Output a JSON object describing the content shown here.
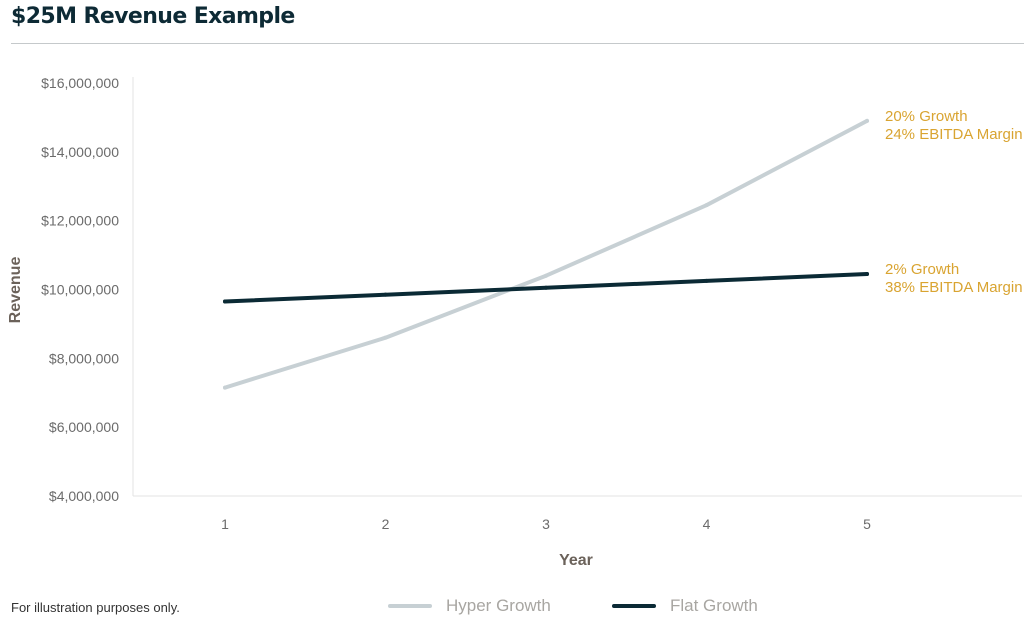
{
  "title": "$25M Revenue Example",
  "footnote": "For illustration purposes only.",
  "colors": {
    "hyper": "#c7d0d4",
    "flat": "#0b2a35",
    "annotation": "#d9a431"
  },
  "chart_data": {
    "type": "line",
    "xlabel": "Year",
    "ylabel": "Revenue",
    "x": [
      1,
      2,
      3,
      4,
      5
    ],
    "ylim": [
      4000000,
      16000000
    ],
    "yticks": [
      4000000,
      6000000,
      8000000,
      10000000,
      12000000,
      14000000,
      16000000
    ],
    "ytick_labels": [
      "$4,000,000",
      "$6,000,000",
      "$8,000,000",
      "$10,000,000",
      "$12,000,000",
      "$14,000,000",
      "$16,000,000"
    ],
    "grid": false,
    "legend_position": "bottom",
    "series": [
      {
        "name": "Hyper Growth",
        "values": [
          7150000,
          8600000,
          10400000,
          12450000,
          14900000
        ],
        "annotation": [
          "20% Growth",
          "24% EBITDA Margin"
        ]
      },
      {
        "name": "Flat Growth",
        "values": [
          9650000,
          9850000,
          10050000,
          10250000,
          10450000
        ],
        "annotation": [
          "2% Growth",
          "38% EBITDA Margin"
        ]
      }
    ]
  }
}
